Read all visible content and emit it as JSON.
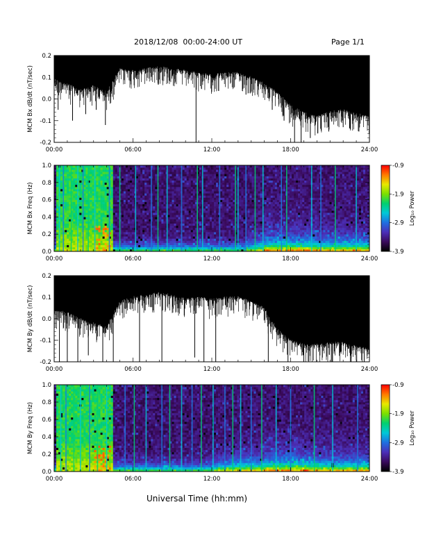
{
  "header": {
    "date_range": "2018/12/08  00:00-24:00 UT",
    "page": "Page 1/1"
  },
  "footer": {
    "xlabel": "Universal Time (hh:mm)"
  },
  "colors": {
    "trace": "#000000",
    "background": "#ffffff",
    "colormap": [
      "#000000",
      "#3a0a5c",
      "#4b2fb8",
      "#1f6fe0",
      "#00c8d8",
      "#00d070",
      "#7be000",
      "#e8e800",
      "#ff7a00",
      "#ff0000"
    ]
  },
  "chart_data": [
    {
      "type": "line",
      "panel": "bx-dbdt",
      "ylabel": "MCM Bx dB/dt (nT/sec)",
      "xlim": [
        0,
        24
      ],
      "ylim": [
        -0.2,
        0.2
      ],
      "yticks": [
        -0.2,
        -0.1,
        0.0,
        0.1,
        0.2
      ],
      "ytick_labels": [
        "-0.2",
        "-0.1",
        "0.0",
        "0.1",
        "0.2"
      ],
      "xticks": [
        0,
        6,
        12,
        18,
        24
      ],
      "xtick_labels": [
        "00:00",
        "06:00",
        "12:00",
        "18:00",
        "24:00"
      ],
      "envelope": {
        "hours": [
          0,
          1,
          2,
          3,
          4,
          5,
          6,
          7,
          8,
          9,
          10,
          11,
          12,
          13,
          14,
          15,
          16,
          17,
          18,
          19,
          20,
          21,
          22,
          23,
          24
        ],
        "lower": [
          0.09,
          0.07,
          0.04,
          0.06,
          0.03,
          0.14,
          0.13,
          0.14,
          0.15,
          0.14,
          0.13,
          0.12,
          0.11,
          0.12,
          0.12,
          0.1,
          0.07,
          0.03,
          -0.03,
          -0.06,
          -0.08,
          -0.06,
          -0.05,
          -0.07,
          -0.08
        ],
        "upper": [
          0.2,
          0.2,
          0.2,
          0.2,
          0.2,
          0.2,
          0.2,
          0.2,
          0.2,
          0.2,
          0.2,
          0.2,
          0.2,
          0.2,
          0.2,
          0.2,
          0.2,
          0.2,
          0.2,
          0.2,
          0.2,
          0.2,
          0.2,
          0.2,
          0.2
        ]
      },
      "spikes": [
        [
          0.3,
          -0.05
        ],
        [
          1.4,
          -0.1
        ],
        [
          2.4,
          -0.07
        ],
        [
          3.2,
          -0.05
        ],
        [
          3.9,
          -0.12
        ],
        [
          10.8,
          -0.2
        ],
        [
          14.6,
          0.02
        ],
        [
          16.6,
          -0.05
        ],
        [
          17.5,
          -0.1
        ],
        [
          18.3,
          -0.2
        ],
        [
          18.8,
          -0.2
        ],
        [
          19.5,
          -0.18
        ],
        [
          20.9,
          -0.15
        ],
        [
          22.0,
          -0.13
        ],
        [
          23.2,
          -0.15
        ]
      ]
    },
    {
      "type": "heatmap",
      "panel": "bx-spectrogram",
      "ylabel": "MCM Bx Freq (Hz)",
      "xlim": [
        0,
        24
      ],
      "ylim": [
        0,
        1.0
      ],
      "yticks": [
        0,
        0.2,
        0.4,
        0.6,
        0.8,
        1.0
      ],
      "ytick_labels": [
        "0.0",
        "0.2",
        "0.4",
        "0.6",
        "0.8",
        "1.0"
      ],
      "xticks": [
        0,
        6,
        12,
        18,
        24
      ],
      "xtick_labels": [
        "00:00",
        "06:00",
        "12:00",
        "18:00",
        "24:00"
      ],
      "colorbar": {
        "label": "Log₁₀ Power",
        "range": [
          -3.9,
          -0.9
        ],
        "ticks": [
          -3.9,
          -2.9,
          -1.9,
          -0.9
        ],
        "tick_labels": [
          "-3.9",
          "-2.9",
          "-1.9",
          "-0.9"
        ]
      },
      "bright_band_hours": [
        0.1,
        4.4
      ],
      "low_freq_activity_hours": [
        [
          14.5,
          24
        ]
      ],
      "vertical_stripes_hours": [
        0.4,
        0.7,
        1.3,
        1.8,
        2.2,
        2.6,
        3.1,
        4.2,
        5.0,
        6.2,
        7.4,
        7.9,
        8.6,
        9.7,
        10.9,
        11.3,
        12.6,
        13.8,
        14.0,
        14.6,
        15.3,
        15.9,
        17.3,
        17.7,
        19.6,
        20.3,
        21.4,
        23.0
      ]
    },
    {
      "type": "line",
      "panel": "by-dbdt",
      "ylabel": "MCM By dB/dt (nT/sec)",
      "xlim": [
        0,
        24
      ],
      "ylim": [
        -0.2,
        0.2
      ],
      "yticks": [
        -0.2,
        -0.1,
        0.0,
        0.1,
        0.2
      ],
      "ytick_labels": [
        "-0.2",
        "-0.1",
        "0.0",
        "0.1",
        "0.2"
      ],
      "xticks": [
        0,
        6,
        12,
        18,
        24
      ],
      "xtick_labels": [
        "00:00",
        "06:00",
        "12:00",
        "18:00",
        "24:00"
      ],
      "envelope": {
        "hours": [
          0,
          1,
          2,
          3,
          4,
          5,
          6,
          7,
          8,
          9,
          10,
          11,
          12,
          13,
          14,
          15,
          16,
          17,
          18,
          19,
          20,
          21,
          22,
          23,
          24
        ],
        "lower": [
          0.04,
          0.03,
          0.0,
          -0.02,
          -0.04,
          0.08,
          0.1,
          0.11,
          0.12,
          0.11,
          0.09,
          0.1,
          0.09,
          0.1,
          0.1,
          0.08,
          0.05,
          -0.05,
          -0.1,
          -0.12,
          -0.12,
          -0.11,
          -0.11,
          -0.13,
          -0.14
        ],
        "upper": [
          0.2,
          0.2,
          0.2,
          0.2,
          0.2,
          0.2,
          0.2,
          0.2,
          0.2,
          0.2,
          0.2,
          0.2,
          0.2,
          0.2,
          0.2,
          0.2,
          0.2,
          0.2,
          0.2,
          0.2,
          0.2,
          0.2,
          0.2,
          0.2,
          0.2
        ]
      },
      "spikes": [
        [
          0.4,
          -0.2
        ],
        [
          1.0,
          -0.2
        ],
        [
          1.8,
          -0.2
        ],
        [
          2.6,
          -0.17
        ],
        [
          3.7,
          -0.2
        ],
        [
          4.5,
          -0.2
        ],
        [
          6.5,
          -0.2
        ],
        [
          8.2,
          -0.2
        ],
        [
          10.7,
          -0.18
        ],
        [
          11.4,
          -0.2
        ],
        [
          12.3,
          -0.2
        ],
        [
          16.3,
          -0.2
        ],
        [
          17.8,
          -0.2
        ],
        [
          19.0,
          -0.2
        ],
        [
          21.1,
          -0.2
        ],
        [
          22.6,
          -0.2
        ],
        [
          23.6,
          -0.2
        ]
      ]
    },
    {
      "type": "heatmap",
      "panel": "by-spectrogram",
      "ylabel": "MCM By Freq (Hz)",
      "xlim": [
        0,
        24
      ],
      "ylim": [
        0,
        1.0
      ],
      "yticks": [
        0,
        0.2,
        0.4,
        0.6,
        0.8,
        1.0
      ],
      "ytick_labels": [
        "0.0",
        "0.2",
        "0.4",
        "0.6",
        "0.8",
        "1.0"
      ],
      "xticks": [
        0,
        6,
        12,
        18,
        24
      ],
      "xtick_labels": [
        "00:00",
        "06:00",
        "12:00",
        "18:00",
        "24:00"
      ],
      "colorbar": {
        "label": "Log₁₀ Power",
        "range": [
          -3.9,
          -0.9
        ],
        "ticks": [
          -3.9,
          -2.9,
          -1.9,
          -0.9
        ],
        "tick_labels": [
          "-3.9",
          "-2.9",
          "-1.9",
          "-0.9"
        ]
      },
      "bright_band_hours": [
        0.1,
        4.4
      ],
      "low_freq_activity_hours": [
        [
          12.0,
          24
        ]
      ],
      "vertical_stripes_hours": [
        0.5,
        0.9,
        1.5,
        2.0,
        2.7,
        3.3,
        4.0,
        5.4,
        6.1,
        7.0,
        8.2,
        8.8,
        9.7,
        10.5,
        11.2,
        12.1,
        13.0,
        13.6,
        14.2,
        15.0,
        15.8,
        16.9,
        18.0,
        19.8,
        21.2,
        23.1
      ]
    }
  ]
}
